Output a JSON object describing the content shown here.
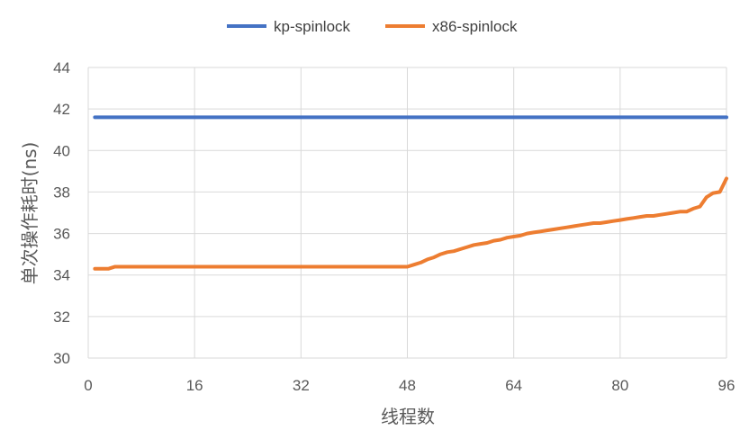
{
  "chart_data": {
    "type": "line",
    "xlabel": "线程数",
    "ylabel": "单次操作耗时(ns)",
    "xlim": [
      0,
      96
    ],
    "ylim": [
      30,
      44
    ],
    "xticks": [
      0,
      16,
      32,
      48,
      64,
      80,
      96
    ],
    "yticks": [
      30,
      32,
      34,
      36,
      38,
      40,
      42,
      44
    ],
    "grid": true,
    "legend_position": "top",
    "series": [
      {
        "name": "kp-spinlock",
        "color": "#4472C4",
        "x": [
          1,
          96
        ],
        "y": [
          41.6,
          41.6
        ]
      },
      {
        "name": "x86-spinlock",
        "color": "#ED7D31",
        "x": [
          1,
          3,
          4,
          48,
          49,
          50,
          51,
          52,
          53,
          54,
          55,
          56,
          57,
          58,
          59,
          60,
          61,
          62,
          63,
          64,
          65,
          66,
          67,
          68,
          69,
          70,
          71,
          72,
          73,
          74,
          75,
          76,
          77,
          78,
          79,
          80,
          81,
          82,
          83,
          84,
          85,
          86,
          87,
          88,
          89,
          90,
          91,
          92,
          93,
          94,
          95,
          96
        ],
        "y": [
          34.3,
          34.3,
          34.4,
          34.4,
          34.5,
          34.6,
          34.75,
          34.85,
          35.0,
          35.1,
          35.15,
          35.25,
          35.35,
          35.45,
          35.5,
          35.55,
          35.65,
          35.7,
          35.8,
          35.85,
          35.9,
          36.0,
          36.05,
          36.1,
          36.15,
          36.2,
          36.25,
          36.3,
          36.35,
          36.4,
          36.45,
          36.5,
          36.5,
          36.55,
          36.6,
          36.65,
          36.7,
          36.75,
          36.8,
          36.85,
          36.85,
          36.9,
          36.95,
          37.0,
          37.05,
          37.05,
          37.2,
          37.3,
          37.75,
          37.95,
          38.0,
          38.65
        ]
      }
    ]
  }
}
